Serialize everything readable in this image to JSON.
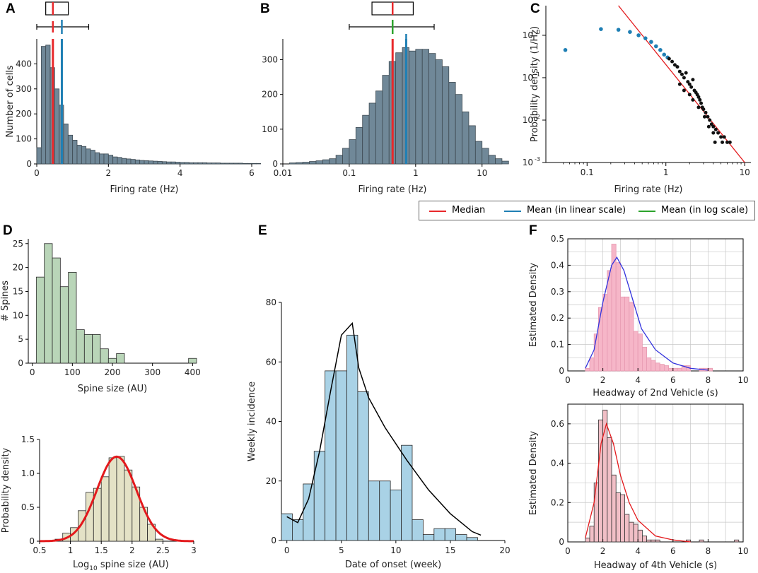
{
  "panel_labels": [
    "A",
    "B",
    "C",
    "D",
    "E",
    "F"
  ],
  "colors": {
    "median": "#e8282b",
    "mean_linear": "#1f7fb4",
    "mean_log": "#2ca32c",
    "firing_bar": "#708898",
    "spine_bar": "#b9d5b8",
    "log_spine_bar": "#e4e2c6",
    "onset_bar": "#a9d2e6",
    "headway_bar": "#f6b6c8",
    "headway_bar2": "#f1bfc6",
    "red_fit": "#e3191c",
    "blue_fit": "#3333dd"
  },
  "legend": {
    "median": "Median",
    "mean_linear": "Mean (in linear scale)",
    "mean_log": "Mean (in log scale)"
  },
  "chart_data": [
    {
      "id": "A",
      "type": "bar",
      "xlabel": "Firing rate (Hz)",
      "ylabel": "Number of cells",
      "xlim": [
        0,
        6
      ],
      "ylim": [
        0,
        500
      ],
      "xticks": [
        0,
        2,
        4,
        6
      ],
      "yticks": [
        0,
        100,
        200,
        300,
        400
      ],
      "bin_width": 0.125,
      "values": [
        65,
        470,
        475,
        385,
        300,
        235,
        160,
        115,
        95,
        75,
        70,
        60,
        55,
        45,
        40,
        40,
        35,
        28,
        26,
        22,
        20,
        18,
        16,
        14,
        13,
        12,
        11,
        10,
        9,
        8,
        8,
        7,
        6,
        6,
        5,
        5,
        5,
        5,
        4,
        4,
        4,
        3,
        3,
        3,
        3,
        3,
        2,
        2,
        2,
        2
      ],
      "median": 0.45,
      "mean_linear": 0.7,
      "boxplot": {
        "whisker_low": 0.0,
        "q1": 0.25,
        "median": 0.45,
        "q3": 0.88,
        "whisker_high": 1.45
      }
    },
    {
      "id": "B",
      "type": "bar",
      "xlabel": "Firing rate (Hz)",
      "ylabel": "",
      "xscale": "log",
      "xlim": [
        0.01,
        20
      ],
      "ylim": [
        0,
        360
      ],
      "xticks": [
        "0.01",
        "0.1",
        "1",
        "10"
      ],
      "yticks": [
        0,
        100,
        200,
        300
      ],
      "bin_edges_log10_start": -1.9,
      "bin_width_log10": 0.1,
      "values": [
        3,
        4,
        5,
        7,
        9,
        12,
        15,
        25,
        45,
        70,
        105,
        140,
        175,
        210,
        255,
        295,
        320,
        335,
        325,
        330,
        330,
        318,
        300,
        280,
        235,
        200,
        150,
        110,
        65,
        45,
        25,
        15,
        8
      ],
      "median": 0.45,
      "mean_log": 0.45,
      "mean_linear": 0.72,
      "boxplot": {
        "whisker_low": 0.1,
        "q1": 0.22,
        "median": 0.45,
        "q3": 0.92,
        "whisker_high": 1.9
      }
    },
    {
      "id": "C",
      "type": "scatter",
      "xlabel": "Firing rate (Hz)",
      "ylabel": "Probability density (1/Hz)",
      "xscale": "log",
      "yscale": "log",
      "xlim": [
        0.03,
        12
      ],
      "ylim": [
        0.001,
        5
      ],
      "xticks": [
        "0.1",
        "1",
        "10"
      ],
      "yticks": [
        {
          "base": "10",
          "exp": "-3"
        },
        {
          "base": "10",
          "exp": "-2"
        },
        {
          "base": "10",
          "exp": "-1"
        },
        {
          "base": "10",
          "exp": "0"
        }
      ],
      "blue_points": [
        [
          0.053,
          0.45
        ],
        [
          0.15,
          1.4
        ],
        [
          0.25,
          1.35
        ],
        [
          0.35,
          1.2
        ],
        [
          0.45,
          1.0
        ],
        [
          0.55,
          0.85
        ],
        [
          0.65,
          0.7
        ],
        [
          0.75,
          0.55
        ],
        [
          0.85,
          0.45
        ],
        [
          0.95,
          0.35
        ],
        [
          1.05,
          0.3
        ]
      ],
      "black_points": [
        [
          1.1,
          0.28
        ],
        [
          1.2,
          0.24
        ],
        [
          1.3,
          0.2
        ],
        [
          1.4,
          0.18
        ],
        [
          1.5,
          0.14
        ],
        [
          1.6,
          0.12
        ],
        [
          1.7,
          0.1
        ],
        [
          1.8,
          0.13
        ],
        [
          1.9,
          0.08
        ],
        [
          2.0,
          0.07
        ],
        [
          2.1,
          0.06
        ],
        [
          2.2,
          0.09
        ],
        [
          2.3,
          0.05
        ],
        [
          2.4,
          0.045
        ],
        [
          2.5,
          0.04
        ],
        [
          2.6,
          0.035
        ],
        [
          2.7,
          0.03
        ],
        [
          2.8,
          0.025
        ],
        [
          2.9,
          0.02
        ],
        [
          3.0,
          0.018
        ],
        [
          3.2,
          0.015
        ],
        [
          3.4,
          0.012
        ],
        [
          3.6,
          0.01
        ],
        [
          3.8,
          0.008
        ],
        [
          4.0,
          0.007
        ],
        [
          4.3,
          0.006
        ],
        [
          4.6,
          0.005
        ],
        [
          5.0,
          0.004
        ],
        [
          5.5,
          0.004
        ],
        [
          6.0,
          0.003
        ],
        [
          4.2,
          0.003
        ],
        [
          5.2,
          0.003
        ],
        [
          6.5,
          0.003
        ],
        [
          2.2,
          0.03
        ],
        [
          2.6,
          0.02
        ],
        [
          3.1,
          0.012
        ],
        [
          3.5,
          0.007
        ],
        [
          4.0,
          0.005
        ],
        [
          1.5,
          0.07
        ],
        [
          1.7,
          0.05
        ],
        [
          2.0,
          0.04
        ]
      ],
      "fit_line": [
        [
          0.25,
          5
        ],
        [
          10,
          0.001
        ]
      ]
    },
    {
      "id": "D-top",
      "type": "bar",
      "xlabel": "Spine size (AU)",
      "ylabel": "# Spines",
      "xlim": [
        -10,
        410
      ],
      "ylim": [
        0,
        26
      ],
      "xticks": [
        0,
        100,
        200,
        300,
        400
      ],
      "yticks": [
        0,
        5,
        10,
        15,
        20,
        25
      ],
      "bin_edges": [
        10,
        30,
        50,
        70,
        90,
        110,
        130,
        150,
        170,
        190,
        210,
        230,
        250,
        390,
        410
      ],
      "values": [
        18,
        25,
        22,
        16,
        19,
        7,
        6,
        6,
        3,
        1,
        2,
        0,
        0,
        1
      ]
    },
    {
      "id": "D-bottom",
      "type": "bar",
      "xlabel_prefix": "Log",
      "xlabel_sub": "10",
      "xlabel_suffix": " spine size (AU)",
      "ylabel": "Probability density",
      "xlim": [
        0.5,
        3
      ],
      "ylim": [
        0,
        1.5
      ],
      "xticks": [
        "0.5",
        "1",
        "1.5",
        "2",
        "2.5",
        "3"
      ],
      "yticks": [
        "0",
        "0.5",
        "1.0",
        "1.5"
      ],
      "bin_edges": [
        0.75,
        0.875,
        1.0,
        1.125,
        1.25,
        1.375,
        1.5,
        1.625,
        1.75,
        1.875,
        2.0,
        2.125,
        2.25,
        2.375,
        2.5
      ],
      "values": [
        0.03,
        0.12,
        0.2,
        0.45,
        0.72,
        0.78,
        0.95,
        1.23,
        1.25,
        1.05,
        0.8,
        0.5,
        0.25,
        0.03
      ],
      "fit": {
        "type": "normal",
        "mean": 1.75,
        "sd": 0.32
      }
    },
    {
      "id": "E",
      "type": "bar",
      "xlabel": "Date of onset (week)",
      "ylabel": "Weekly incidence",
      "xlim": [
        -0.5,
        20
      ],
      "ylim": [
        0,
        80
      ],
      "xticks": [
        0,
        5,
        10,
        15,
        20
      ],
      "yticks": [
        0,
        20,
        40,
        60,
        80
      ],
      "values": [
        9,
        7,
        19,
        30,
        57,
        57,
        69,
        50,
        20,
        20,
        17,
        32,
        7,
        2,
        4,
        4,
        2,
        1
      ],
      "fit_curve": [
        [
          0,
          8
        ],
        [
          1,
          6
        ],
        [
          2,
          14
        ],
        [
          3,
          30
        ],
        [
          4,
          50
        ],
        [
          5,
          69
        ],
        [
          6,
          73
        ],
        [
          6.6,
          58
        ],
        [
          7.5,
          48
        ],
        [
          9,
          38
        ],
        [
          11,
          27
        ],
        [
          13,
          17
        ],
        [
          15,
          9
        ],
        [
          17,
          3
        ],
        [
          17.8,
          1.8
        ]
      ]
    },
    {
      "id": "F-top",
      "type": "bar",
      "xlabel": "Headway of 2nd Vehicle (s)",
      "ylabel": "Estimated Density",
      "xlim": [
        0,
        10
      ],
      "ylim": [
        0,
        0.5
      ],
      "xticks": [
        0,
        2,
        4,
        6,
        8,
        10
      ],
      "yticks": [
        "0",
        "0.1",
        "0.2",
        "0.3",
        "0.4",
        "0.5"
      ],
      "bin_start": 1.0,
      "bin_width": 0.25,
      "values": [
        0.01,
        0.05,
        0.14,
        0.24,
        0.29,
        0.38,
        0.48,
        0.41,
        0.28,
        0.28,
        0.26,
        0.15,
        0.14,
        0.09,
        0.05,
        0.04,
        0.03,
        0.025,
        0.02,
        0.01,
        0.01,
        0.01,
        0.02,
        0.02,
        0.0,
        0.0,
        0.01,
        0.01,
        0.01
      ],
      "fit_curve": [
        [
          1,
          0.01
        ],
        [
          1.5,
          0.08
        ],
        [
          2,
          0.26
        ],
        [
          2.5,
          0.4
        ],
        [
          2.8,
          0.43
        ],
        [
          3.2,
          0.38
        ],
        [
          3.7,
          0.27
        ],
        [
          4.2,
          0.16
        ],
        [
          5,
          0.08
        ],
        [
          6,
          0.03
        ],
        [
          7,
          0.01
        ],
        [
          8,
          0.003
        ]
      ]
    },
    {
      "id": "F-bottom",
      "type": "bar",
      "xlabel": "Headway of 4th Vehicle (s)",
      "ylabel": "Estimated Density",
      "xlim": [
        0,
        10
      ],
      "ylim": [
        0,
        0.7
      ],
      "xticks": [
        0,
        2,
        4,
        6,
        8,
        10
      ],
      "yticks": [
        "0",
        "0.2",
        "0.4",
        "0.6"
      ],
      "bin_start": 1.0,
      "bin_width": 0.25,
      "values": [
        0.02,
        0.08,
        0.3,
        0.62,
        0.67,
        0.53,
        0.34,
        0.25,
        0.24,
        0.14,
        0.1,
        0.09,
        0.06,
        0.03,
        0.01,
        0.01,
        0.01,
        0,
        0,
        0,
        0,
        0,
        0,
        0.01,
        0,
        0,
        0.01,
        0,
        0,
        0,
        0,
        0,
        0,
        0,
        0.01
      ],
      "fit_curve": [
        [
          1,
          0.02
        ],
        [
          1.5,
          0.2
        ],
        [
          1.9,
          0.5
        ],
        [
          2.2,
          0.6
        ],
        [
          2.6,
          0.5
        ],
        [
          3.0,
          0.34
        ],
        [
          3.5,
          0.2
        ],
        [
          4.0,
          0.11
        ],
        [
          5,
          0.03
        ],
        [
          6,
          0.01
        ],
        [
          7,
          0.0
        ]
      ]
    }
  ]
}
